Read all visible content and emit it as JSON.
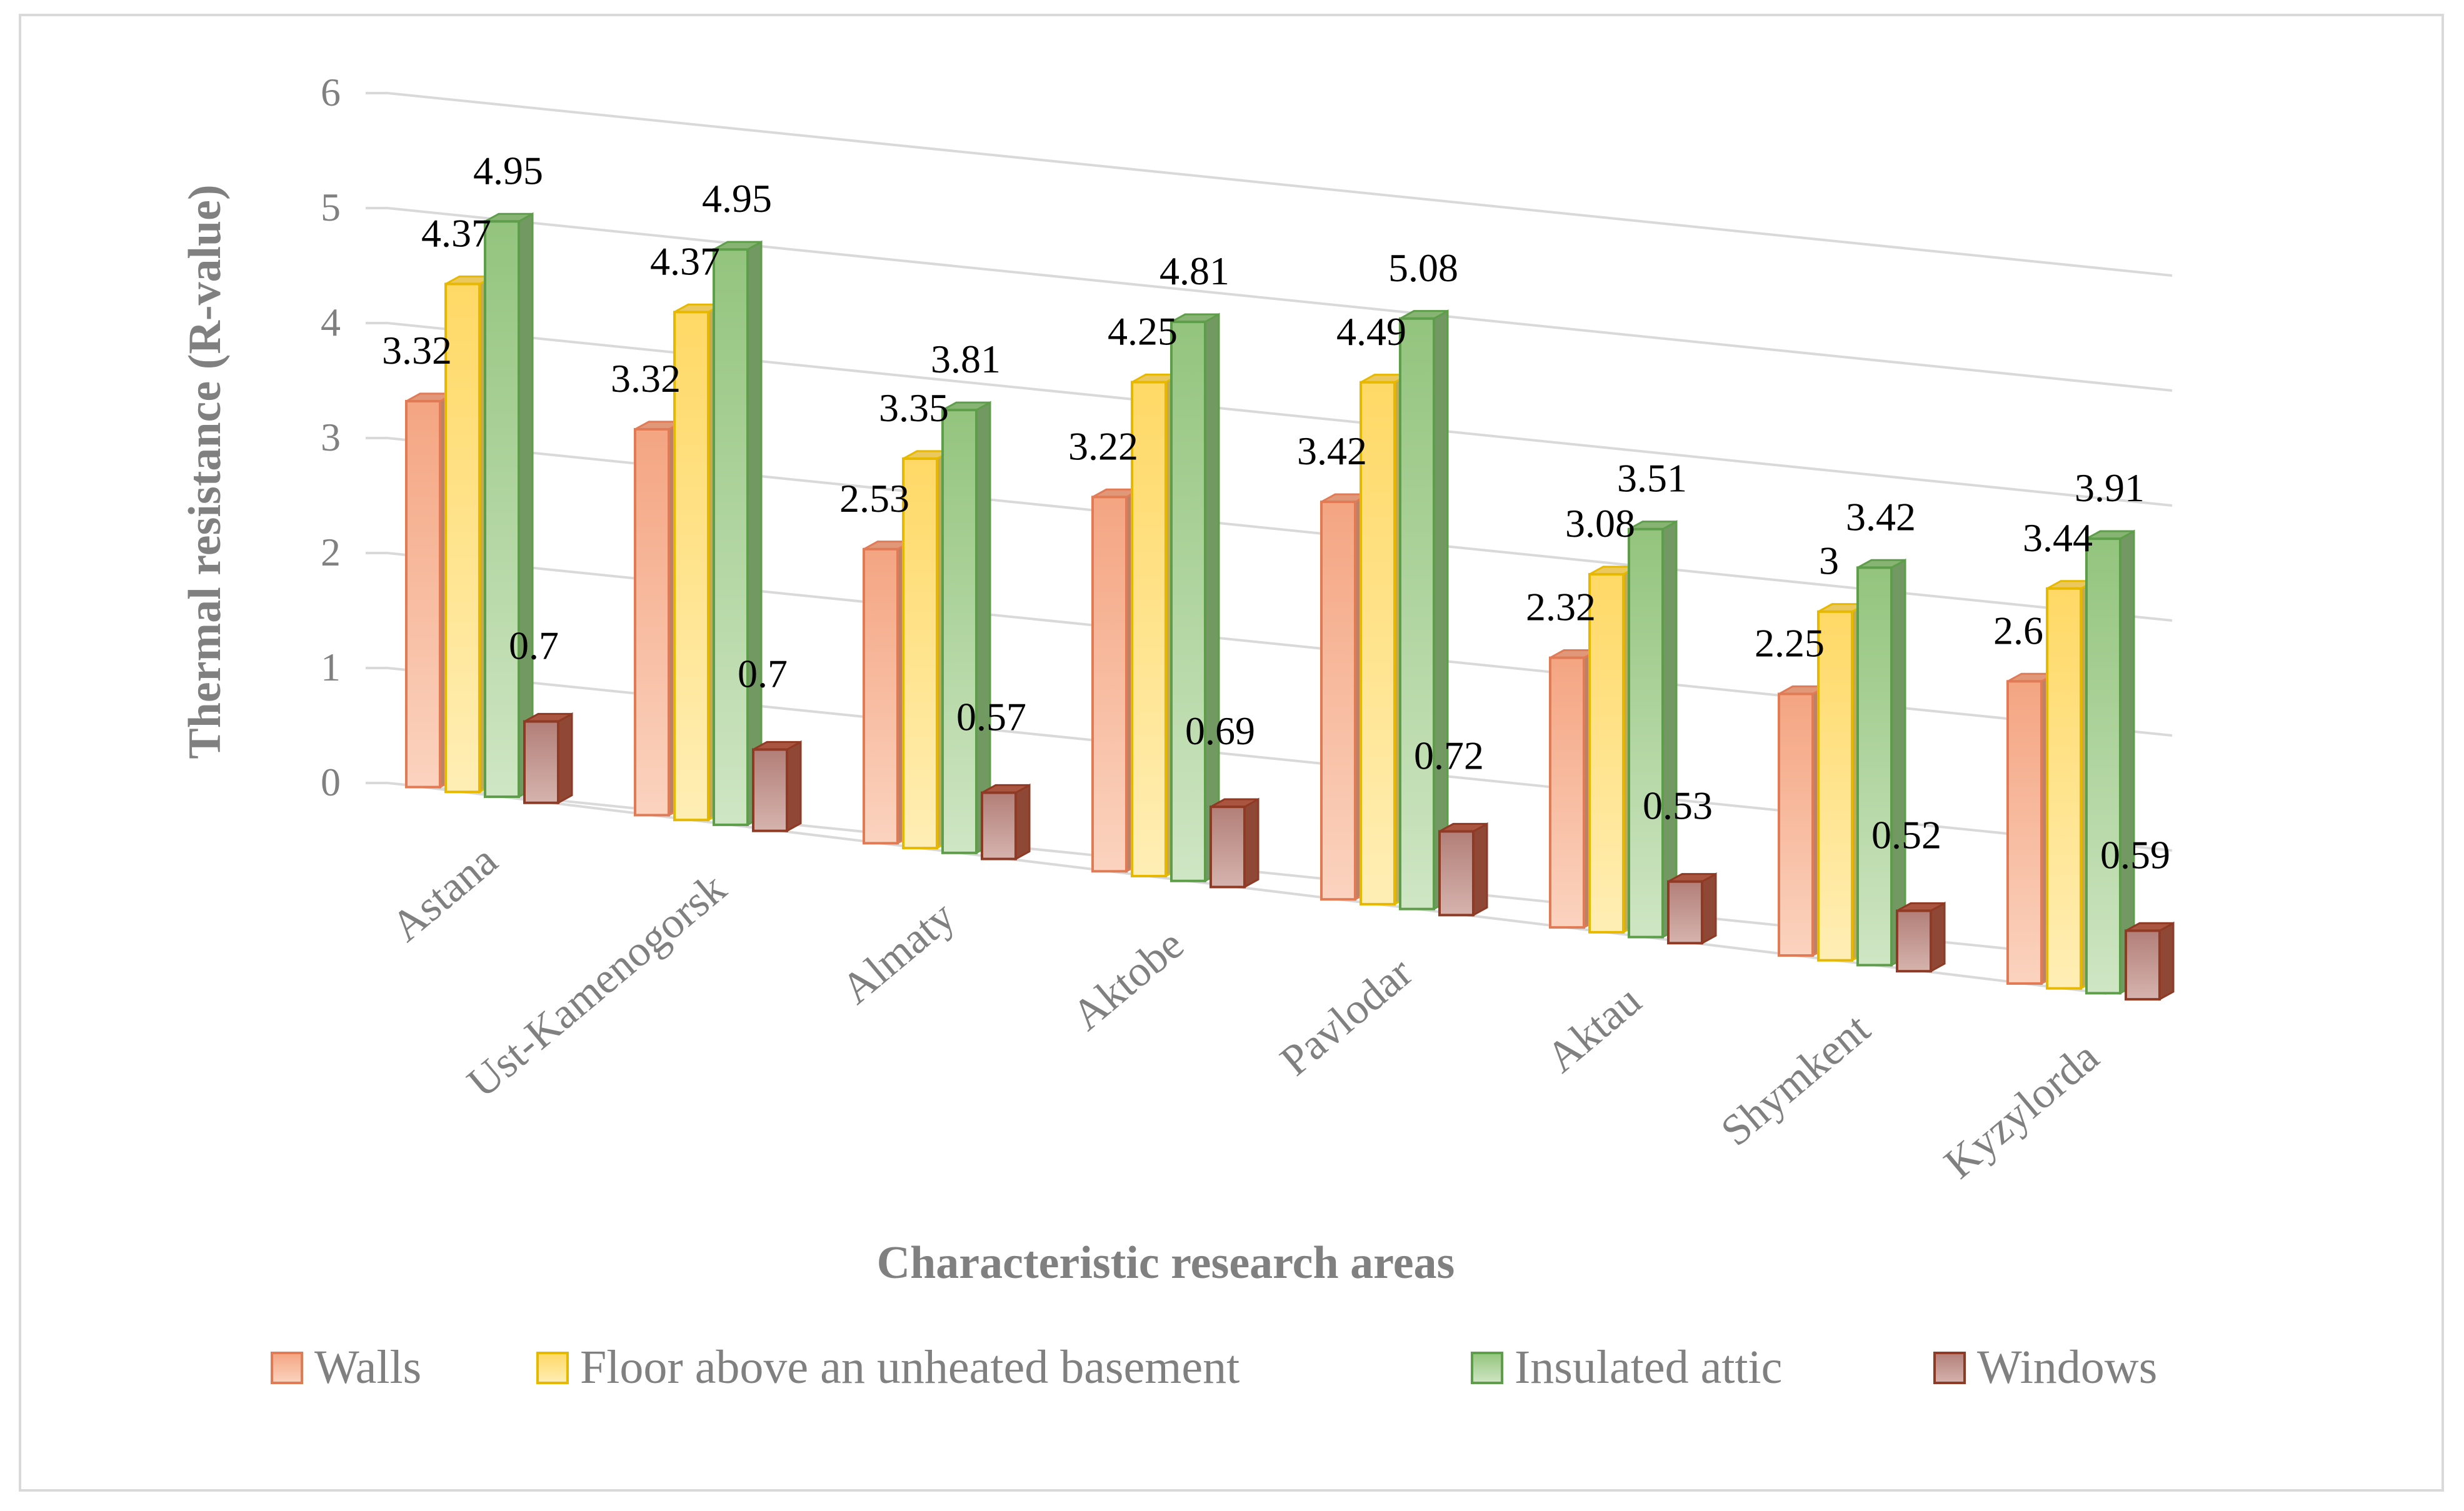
{
  "chart_data": {
    "type": "bar",
    "title": "",
    "xlabel": "Characteristic research areas",
    "ylabel": "Thermal resistance (R-value)",
    "ylim": [
      0,
      6
    ],
    "yticks": [
      "0",
      "1",
      "2",
      "3",
      "4",
      "5",
      "6"
    ],
    "grid": true,
    "legend_position": "bottom",
    "categories": [
      "Astana",
      "Ust-Kamenogorsk",
      "Almaty",
      "Aktobe",
      "Pavlodar",
      "Aktau",
      "Shymkent",
      "Kyzylorda"
    ],
    "series": [
      {
        "name": "Walls",
        "color": "#f4a582",
        "values": [
          3.32,
          3.32,
          2.53,
          3.22,
          3.42,
          2.32,
          2.25,
          2.6
        ],
        "labels": [
          "3.32",
          "3.32",
          "2.53",
          "3.22",
          "3.42",
          "2.32",
          "2.25",
          "2.6"
        ]
      },
      {
        "name": "Floor above an unheated basement",
        "color": "#ffd966",
        "values": [
          4.37,
          4.37,
          3.35,
          4.25,
          4.49,
          3.08,
          3,
          3.44
        ],
        "labels": [
          "4.37",
          "4.37",
          "3.35",
          "4.25",
          "4.49",
          "3.08",
          "3",
          "3.44"
        ]
      },
      {
        "name": "Insulated attic",
        "color": "#93c47d",
        "values": [
          4.95,
          4.95,
          3.81,
          4.81,
          5.08,
          3.51,
          3.42,
          3.91
        ],
        "labels": [
          "4.95",
          "4.95",
          "3.81",
          "4.81",
          "5.08",
          "3.51",
          "3.42",
          "3.91"
        ]
      },
      {
        "name": "Windows",
        "color": "#b85c45",
        "values": [
          0.7,
          0.7,
          0.57,
          0.69,
          0.72,
          0.53,
          0.52,
          0.59
        ],
        "labels": [
          "0.7",
          "0.7",
          "0.57",
          "0.69",
          "0.72",
          "0.53",
          "0.52",
          "0.59"
        ]
      }
    ]
  }
}
